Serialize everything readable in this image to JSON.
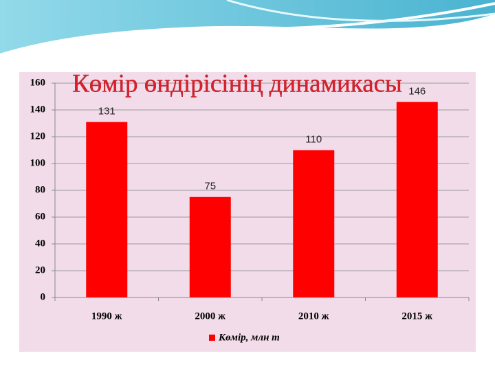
{
  "chart_data": {
    "type": "bar",
    "title": "Көмір өндірісінің динамикасы",
    "categories": [
      "1990 ж",
      "2000 ж",
      "2010 ж",
      "2015 ж"
    ],
    "series": [
      {
        "name": "Көмір, млн т",
        "color": "#ff0000",
        "values": [
          131,
          75,
          110,
          146
        ]
      }
    ],
    "ylim": [
      0,
      160
    ],
    "yticks": [
      0,
      20,
      40,
      60,
      80,
      100,
      120,
      140,
      160
    ],
    "grid": true,
    "legend": "bottom"
  }
}
